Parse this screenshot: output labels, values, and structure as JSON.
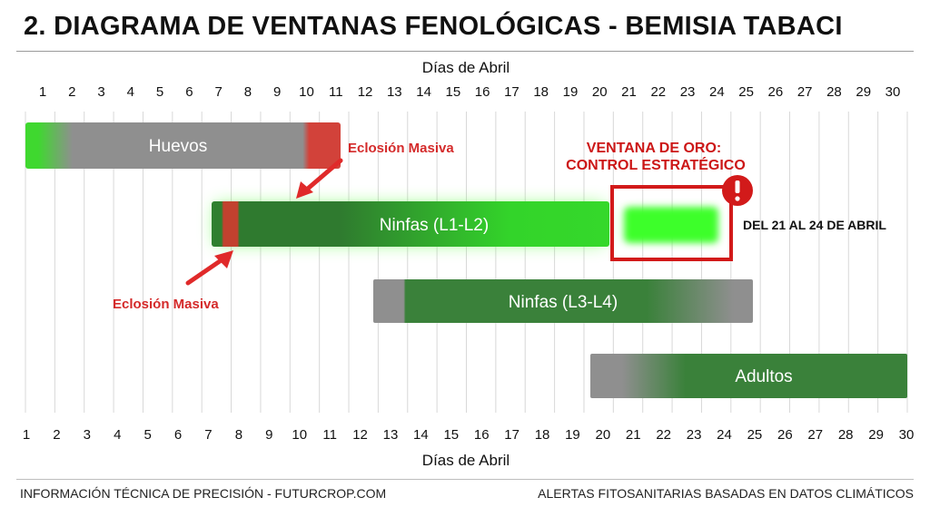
{
  "header": {
    "title": "2. DIAGRAMA DE VENTANAS FENOLÓGICAS - BEMISIA TABACI"
  },
  "chart_data": {
    "type": "gantt",
    "title": "2. DIAGRAMA DE VENTANAS FENOLÓGICAS - BEMISIA TABACI",
    "xlabel": "Días de Abril",
    "x_top_label": "Días de Abril",
    "xlim": [
      1,
      30
    ],
    "xticks": [
      1,
      2,
      3,
      4,
      5,
      6,
      7,
      8,
      9,
      10,
      11,
      12,
      13,
      14,
      15,
      16,
      17,
      18,
      19,
      20,
      21,
      22,
      23,
      24,
      25,
      26,
      27,
      28,
      29,
      30
    ],
    "grid": true,
    "bars": [
      {
        "name": "Huevos",
        "start": 1,
        "end": 11.5,
        "colors": [
          "#3fd82f",
          "#8f8f8f",
          "#d2423a"
        ]
      },
      {
        "name": "Ninfas (L1-L2)",
        "start": 7.1,
        "end": 20.3,
        "colors": [
          "#2f8a2f",
          "#33d42a"
        ],
        "glow": true
      },
      {
        "name": "Ninfas (L3-L4)",
        "start": 12.5,
        "end": 25,
        "colors": [
          "#8f8f8f",
          "#3a813a",
          "#8f8f8f"
        ]
      },
      {
        "name": "Adultos",
        "start": 19.8,
        "end": 30,
        "colors": [
          "#8f8f8f",
          "#3a813a"
        ]
      }
    ],
    "annotations": [
      {
        "text": "Eclosión Masiva",
        "near_day": 10.2
      },
      {
        "text": "Eclosión Masiva",
        "near_day": 7.5
      }
    ],
    "highlight": {
      "label_line1": "VENTANA DE ORO:",
      "label_line2": "CONTROL ESTRATÉGICO",
      "start": 21,
      "end": 24,
      "note": "DEL 21 AL 24 DE ABRIL",
      "color": "#d21a1a"
    }
  },
  "footer": {
    "left": "INFORMACIÓN TÉCNICA DE PRECISIÓN - FUTURCROP.COM",
    "right": "ALERTAS FITOSANITARIAS BASADAS EN DATOS CLIMÁTICOS"
  }
}
